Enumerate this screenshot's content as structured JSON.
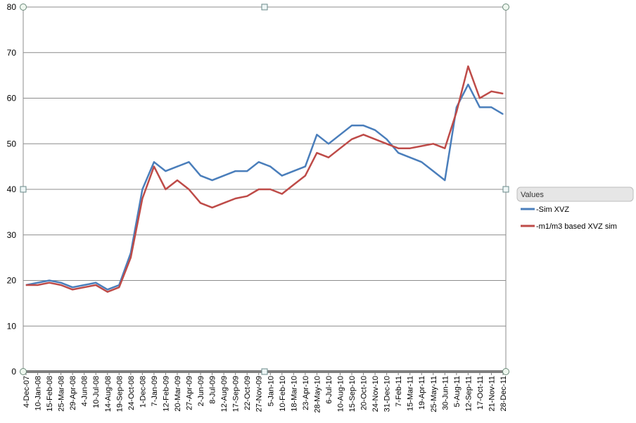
{
  "chart_data": {
    "type": "line",
    "title": "",
    "xlabel": "",
    "ylabel": "",
    "ylim": [
      0,
      80
    ],
    "y_ticks": [
      0,
      10,
      20,
      30,
      40,
      50,
      60,
      70,
      80
    ],
    "grid": "horizontal",
    "legend": {
      "title": "Values",
      "placement": "right"
    },
    "x_labels": [
      "4-Dec-07",
      "10-Jan-08",
      "15-Feb-08",
      "25-Mar-08",
      "29-Apr-08",
      "4-Jun-08",
      "10-Jul-08",
      "14-Aug-08",
      "19-Sep-08",
      "24-Oct-08",
      "1-Dec-08",
      "7-Jan-09",
      "12-Feb-09",
      "20-Mar-09",
      "27-Apr-09",
      "2-Jun-09",
      "8-Jul-09",
      "12-Aug-09",
      "17-Sep-09",
      "22-Oct-09",
      "27-Nov-09",
      "5-Jan-10",
      "10-Feb-10",
      "18-Mar-10",
      "23-Apr-10",
      "28-May-10",
      "6-Jul-10",
      "10-Aug-10",
      "15-Sep-10",
      "20-Oct-10",
      "24-Nov-10",
      "31-Dec-10",
      "7-Feb-11",
      "15-Mar-11",
      "19-Apr-11",
      "25-May-11",
      "30-Jun-11",
      "5-Aug-11",
      "12-Sep-11",
      "17-Oct-11",
      "21-Nov-11",
      "28-Dec-11"
    ],
    "series": [
      {
        "name": "-Sim XVZ",
        "color": "#4a7ebb",
        "values": [
          19,
          19.5,
          20,
          19.5,
          18.5,
          19,
          19.5,
          18,
          19,
          26,
          40,
          46,
          44,
          45,
          46,
          43,
          42,
          43,
          44,
          44,
          46,
          45,
          43,
          44,
          45,
          52,
          50,
          52,
          54,
          54,
          53,
          51,
          48,
          47,
          46,
          44,
          42,
          58,
          63,
          58,
          58,
          56.5
        ]
      },
      {
        "name": "-m1/m3 based XVZ sim",
        "color": "#be4b48",
        "values": [
          19,
          19,
          19.5,
          19,
          18,
          18.5,
          19,
          17.5,
          18.5,
          25,
          38,
          45,
          40,
          42,
          40,
          37,
          36,
          37,
          38,
          38.5,
          40,
          40,
          39,
          41,
          43,
          48,
          47,
          49,
          51,
          52,
          51,
          50,
          49,
          49,
          49.5,
          50,
          49,
          57,
          67,
          60,
          61.5,
          61
        ]
      }
    ]
  }
}
